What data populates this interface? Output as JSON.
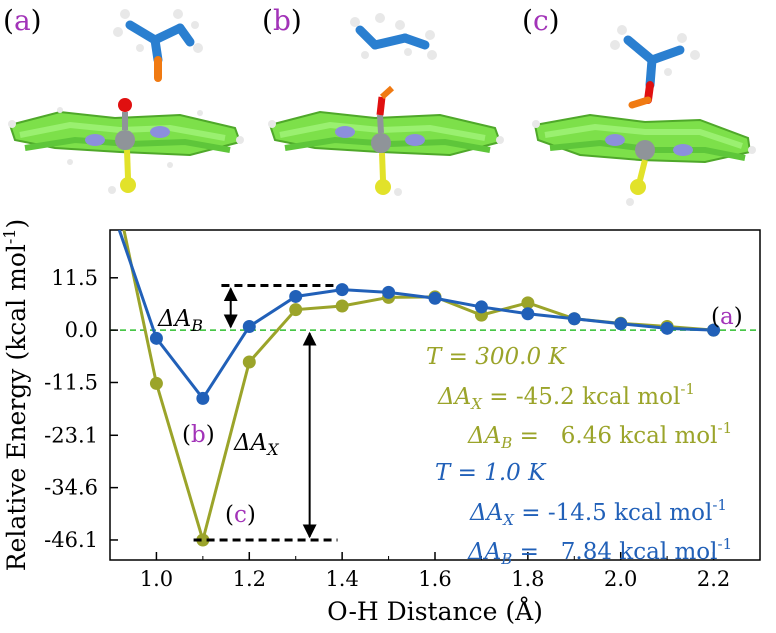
{
  "panels": [
    {
      "label_open": "(",
      "letter": "a",
      "label_close": ")"
    },
    {
      "label_open": "(",
      "letter": "b",
      "label_close": ")"
    },
    {
      "label_open": "(",
      "letter": "c",
      "label_close": ")"
    }
  ],
  "colors": {
    "olive": "#9ba42a",
    "blue": "#2160b8",
    "purple": "#a233b8",
    "green_dash": "#2fbf2f",
    "carbon_blue": "#2a7fd0",
    "ring_green": "#7de04a",
    "nitrogen": "#8c8fdc",
    "oxygen": "#e01010",
    "orange": "#f07a12",
    "sulfur": "#e2e22a",
    "iron": "#8f9499"
  },
  "chart_data": {
    "type": "line",
    "xlabel": "O-H Distance (Å)",
    "ylabel": "Relative Energy (kcal mol-1)",
    "ylabel_main": "Relative Energy (kcal mol",
    "ylabel_sup": "-1",
    "ylabel_close": ")",
    "xlim": [
      0.9,
      2.3
    ],
    "ylim": [
      -50.5,
      22
    ],
    "x_ticks": [
      "1.0",
      "1.2",
      "1.4",
      "1.6",
      "1.8",
      "2.0",
      "2.2"
    ],
    "x_tick_values": [
      1.0,
      1.2,
      1.4,
      1.6,
      1.8,
      2.0,
      2.2
    ],
    "y_ticks": [
      "11.5",
      "0.0",
      "-11.5",
      "-23.1",
      "-34.6",
      "-46.1"
    ],
    "y_tick_values": [
      11.5,
      0.0,
      -11.5,
      -23.1,
      -34.6,
      -46.1
    ],
    "series": [
      {
        "color": "olive",
        "x": [
          1.0,
          1.1,
          1.2,
          1.3,
          1.4,
          1.5,
          1.6,
          1.7,
          1.8,
          1.9,
          2.0,
          2.1,
          2.2
        ],
        "y": [
          -11.7,
          -46.1,
          -7.0,
          4.5,
          5.3,
          7.2,
          7.3,
          3.3,
          6.0,
          2.5,
          1.5,
          0.8,
          0.0
        ],
        "steep_start": [
          0.93,
          22
        ]
      },
      {
        "color": "blue",
        "x": [
          1.0,
          1.1,
          1.2,
          1.3,
          1.4,
          1.5,
          1.6,
          1.7,
          1.8,
          1.9,
          2.0,
          2.1,
          2.2
        ],
        "y": [
          -1.8,
          -15.0,
          0.8,
          7.4,
          8.9,
          8.3,
          7.0,
          5.1,
          3.6,
          2.5,
          1.4,
          0.4,
          0.0
        ],
        "steep_start": [
          0.92,
          22
        ]
      }
    ],
    "annotations": {
      "point_labels": [
        {
          "open": "(",
          "letter": "a",
          "close": ")"
        },
        {
          "open": "(",
          "letter": "b",
          "close": ")"
        },
        {
          "open": "(",
          "letter": "c",
          "close": ")"
        }
      ],
      "delta_ab_symbol": "ΔA",
      "delta_ab_sub": "B",
      "delta_ax_symbol": "ΔA",
      "delta_ax_sub": "X",
      "legend_blocks": [
        {
          "color": "olive",
          "temp": "T = 300.0 K",
          "ax_sym": "ΔA",
          "ax_sub": "X",
          "ax_val": " = -45.2 kcal mol",
          "ax_sup": "-1",
          "ab_sym": "ΔA",
          "ab_sub": "B",
          "ab_val": " =   6.46 kcal mol",
          "ab_sup": "-1"
        },
        {
          "color": "blue",
          "temp": "T = 1.0 K",
          "ax_sym": "ΔA",
          "ax_sub": "X",
          "ax_val": " = -14.5 kcal mol",
          "ax_sup": "-1",
          "ab_sym": "ΔA",
          "ab_sub": "B",
          "ab_val": " =   7.84 kcal mol",
          "ab_sup": "-1"
        }
      ]
    }
  }
}
